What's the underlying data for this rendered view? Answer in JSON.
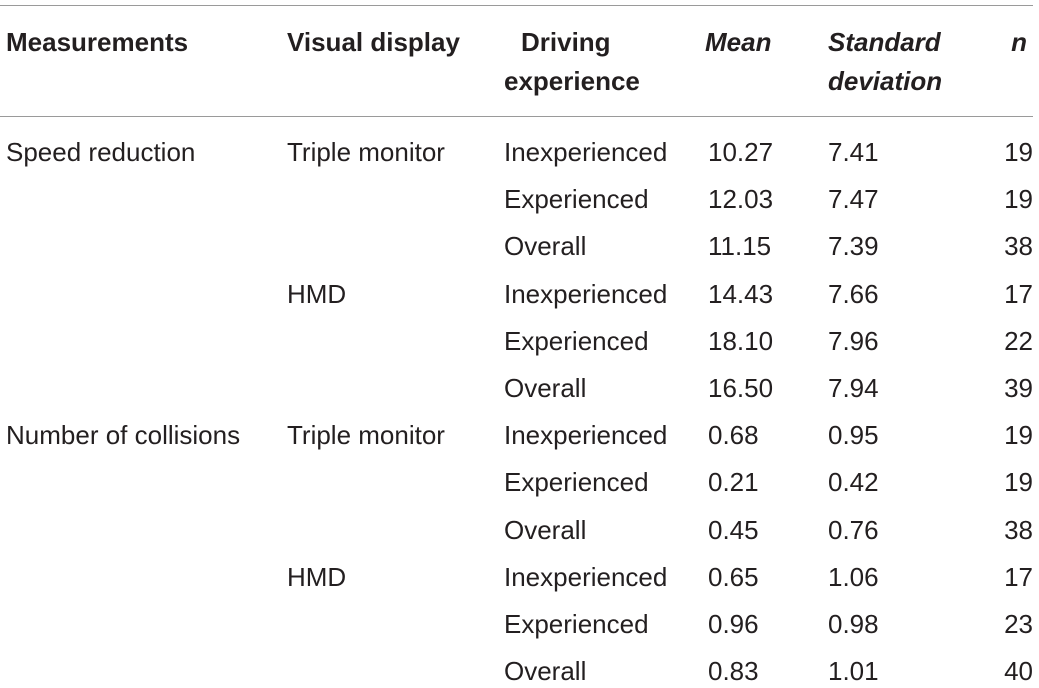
{
  "headers": {
    "measurements": "Measurements",
    "visual_display": "Visual display",
    "driving_experience_line1": "Driving",
    "driving_experience_line2": "experience",
    "mean": "Mean",
    "sd_line1": "Standard",
    "sd_line2": "deviation",
    "n": "n"
  },
  "rows": [
    {
      "measurement": "Speed reduction",
      "display": "Triple monitor",
      "experience": "Inexperienced",
      "mean": "10.27",
      "sd": "7.41",
      "n": "19"
    },
    {
      "measurement": "",
      "display": "",
      "experience": "Experienced",
      "mean": "12.03",
      "sd": "7.47",
      "n": "19"
    },
    {
      "measurement": "",
      "display": "",
      "experience": "Overall",
      "mean": "11.15",
      "sd": "7.39",
      "n": "38"
    },
    {
      "measurement": "",
      "display": "HMD",
      "experience": "Inexperienced",
      "mean": "14.43",
      "sd": "7.66",
      "n": "17"
    },
    {
      "measurement": "",
      "display": "",
      "experience": "Experienced",
      "mean": "18.10",
      "sd": "7.96",
      "n": "22"
    },
    {
      "measurement": "",
      "display": "",
      "experience": "Overall",
      "mean": "16.50",
      "sd": "7.94",
      "n": "39"
    },
    {
      "measurement": "Number of collisions",
      "display": "Triple monitor",
      "experience": "Inexperienced",
      "mean": "0.68",
      "sd": "0.95",
      "n": "19"
    },
    {
      "measurement": "",
      "display": "",
      "experience": "Experienced",
      "mean": "0.21",
      "sd": "0.42",
      "n": "19"
    },
    {
      "measurement": "",
      "display": "",
      "experience": "Overall",
      "mean": "0.45",
      "sd": "0.76",
      "n": "38"
    },
    {
      "measurement": "",
      "display": "HMD",
      "experience": "Inexperienced",
      "mean": "0.65",
      "sd": "1.06",
      "n": "17"
    },
    {
      "measurement": "",
      "display": "",
      "experience": "Experienced",
      "mean": "0.96",
      "sd": "0.98",
      "n": "23"
    },
    {
      "measurement": "",
      "display": "",
      "experience": "Overall",
      "mean": "0.83",
      "sd": "1.01",
      "n": "40"
    }
  ]
}
